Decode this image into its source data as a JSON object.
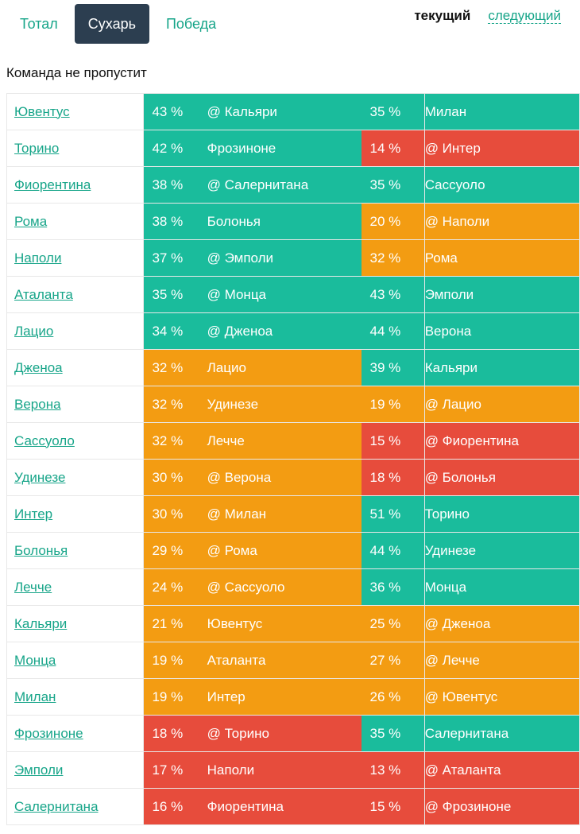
{
  "tabs": [
    {
      "label": "Тотал",
      "active": false
    },
    {
      "label": "Сухарь",
      "active": true
    },
    {
      "label": "Победа",
      "active": false
    }
  ],
  "round_switch": {
    "current": "текущий",
    "next": "следующий"
  },
  "heading": "Команда не пропустит",
  "colors": {
    "green": "#1abc9c",
    "orange": "#f39c12",
    "red": "#e74c3c",
    "link": "#17a589",
    "active_tab": "#2c3e50"
  },
  "rows": [
    {
      "team": "Ювентус",
      "cur_pct": "43 %",
      "cur_opp": "@ Кальяри",
      "cur_color": "green",
      "next_pct": "35 %",
      "next_opp": "Милан",
      "next_color": "green"
    },
    {
      "team": "Торино",
      "cur_pct": "42 %",
      "cur_opp": "Фрозиноне",
      "cur_color": "green",
      "next_pct": "14 %",
      "next_opp": "@ Интер",
      "next_color": "red"
    },
    {
      "team": "Фиорентина",
      "cur_pct": "38 %",
      "cur_opp": "@ Салернитана",
      "cur_color": "green",
      "next_pct": "35 %",
      "next_opp": "Сассуоло",
      "next_color": "green"
    },
    {
      "team": "Рома",
      "cur_pct": "38 %",
      "cur_opp": "Болонья",
      "cur_color": "green",
      "next_pct": "20 %",
      "next_opp": "@ Наполи",
      "next_color": "orange"
    },
    {
      "team": "Наполи",
      "cur_pct": "37 %",
      "cur_opp": "@ Эмполи",
      "cur_color": "green",
      "next_pct": "32 %",
      "next_opp": "Рома",
      "next_color": "orange"
    },
    {
      "team": "Аталанта",
      "cur_pct": "35 %",
      "cur_opp": "@ Монца",
      "cur_color": "green",
      "next_pct": "43 %",
      "next_opp": "Эмполи",
      "next_color": "green"
    },
    {
      "team": "Лацио",
      "cur_pct": "34 %",
      "cur_opp": "@ Дженоа",
      "cur_color": "green",
      "next_pct": "44 %",
      "next_opp": "Верона",
      "next_color": "green"
    },
    {
      "team": "Дженоа",
      "cur_pct": "32 %",
      "cur_opp": "Лацио",
      "cur_color": "orange",
      "next_pct": "39 %",
      "next_opp": "Кальяри",
      "next_color": "green"
    },
    {
      "team": "Верона",
      "cur_pct": "32 %",
      "cur_opp": "Удинезе",
      "cur_color": "orange",
      "next_pct": "19 %",
      "next_opp": "@ Лацио",
      "next_color": "orange"
    },
    {
      "team": "Сассуоло",
      "cur_pct": "32 %",
      "cur_opp": "Лечче",
      "cur_color": "orange",
      "next_pct": "15 %",
      "next_opp": "@ Фиорентина",
      "next_color": "red"
    },
    {
      "team": "Удинезе",
      "cur_pct": "30 %",
      "cur_opp": "@ Верона",
      "cur_color": "orange",
      "next_pct": "18 %",
      "next_opp": "@ Болонья",
      "next_color": "red"
    },
    {
      "team": "Интер",
      "cur_pct": "30 %",
      "cur_opp": "@ Милан",
      "cur_color": "orange",
      "next_pct": "51 %",
      "next_opp": "Торино",
      "next_color": "green"
    },
    {
      "team": "Болонья",
      "cur_pct": "29 %",
      "cur_opp": "@ Рома",
      "cur_color": "orange",
      "next_pct": "44 %",
      "next_opp": "Удинезе",
      "next_color": "green"
    },
    {
      "team": "Лечче",
      "cur_pct": "24 %",
      "cur_opp": "@ Сассуоло",
      "cur_color": "orange",
      "next_pct": "36 %",
      "next_opp": "Монца",
      "next_color": "green"
    },
    {
      "team": "Кальяри",
      "cur_pct": "21 %",
      "cur_opp": "Ювентус",
      "cur_color": "orange",
      "next_pct": "25 %",
      "next_opp": "@ Дженоа",
      "next_color": "orange"
    },
    {
      "team": "Монца",
      "cur_pct": "19 %",
      "cur_opp": "Аталанта",
      "cur_color": "orange",
      "next_pct": "27 %",
      "next_opp": "@ Лечче",
      "next_color": "orange"
    },
    {
      "team": "Милан",
      "cur_pct": "19 %",
      "cur_opp": "Интер",
      "cur_color": "orange",
      "next_pct": "26 %",
      "next_opp": "@ Ювентус",
      "next_color": "orange"
    },
    {
      "team": "Фрозиноне",
      "cur_pct": "18 %",
      "cur_opp": "@ Торино",
      "cur_color": "red",
      "next_pct": "35 %",
      "next_opp": "Салернитана",
      "next_color": "green"
    },
    {
      "team": "Эмполи",
      "cur_pct": "17 %",
      "cur_opp": "Наполи",
      "cur_color": "red",
      "next_pct": "13 %",
      "next_opp": "@ Аталанта",
      "next_color": "red"
    },
    {
      "team": "Салернитана",
      "cur_pct": "16 %",
      "cur_opp": "Фиорентина",
      "cur_color": "red",
      "next_pct": "15 %",
      "next_opp": "@ Фрозиноне",
      "next_color": "red"
    }
  ]
}
